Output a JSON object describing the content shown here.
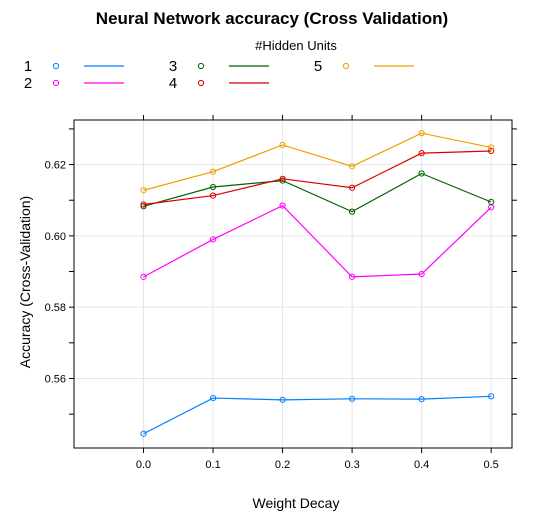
{
  "chart_data": {
    "type": "line",
    "title": "Neural Network accuracy (Cross Validation)",
    "xlabel": "Weight Decay",
    "ylabel": "Accuracy (Cross-Validation)",
    "x": [
      0.0,
      0.1,
      0.2,
      0.3,
      0.4,
      0.5
    ],
    "x_tick_labels": [
      "0.0",
      "0.1",
      "0.2",
      "0.3",
      "0.4",
      "0.5"
    ],
    "y_ticks": [
      0.56,
      0.58,
      0.6,
      0.62
    ],
    "y_tick_labels": [
      "0.56",
      "0.58",
      "0.60",
      "0.62"
    ],
    "xlim": [
      -0.1,
      0.53
    ],
    "ylim": [
      0.5405,
      0.6325
    ],
    "grid": true,
    "legend": {
      "title": "#Hidden Units",
      "placement": "top"
    },
    "series": [
      {
        "name": "1",
        "color": "#0080ff",
        "values": [
          0.5445,
          0.5545,
          0.554,
          0.5543,
          0.5542,
          0.555
        ]
      },
      {
        "name": "2",
        "color": "#ff00ff",
        "values": [
          0.5885,
          0.599,
          0.6085,
          0.5885,
          0.5893,
          0.608
        ]
      },
      {
        "name": "3",
        "color": "#006400",
        "values": [
          0.6083,
          0.6137,
          0.6155,
          0.6068,
          0.6175,
          0.6095
        ]
      },
      {
        "name": "4",
        "color": "#dc0000",
        "values": [
          0.6088,
          0.6113,
          0.616,
          0.6135,
          0.6232,
          0.6238
        ]
      },
      {
        "name": "5",
        "color": "#f0a000",
        "values": [
          0.6128,
          0.618,
          0.6255,
          0.6195,
          0.6288,
          0.6248
        ]
      }
    ]
  }
}
